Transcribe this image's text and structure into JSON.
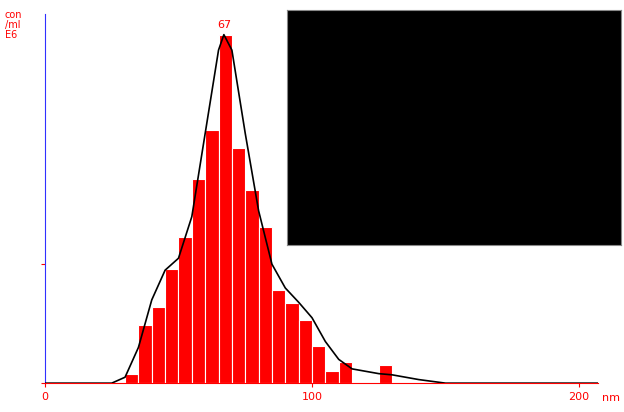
{
  "chart_data": {
    "type": "histogram",
    "ylabel": "con\n/ml\nE6",
    "xlabel": "nm",
    "bins": [
      30,
      35,
      40,
      45,
      50,
      55,
      60,
      65,
      70,
      75,
      80,
      85,
      90,
      95,
      100,
      105,
      110,
      115,
      120,
      125,
      130
    ],
    "counts": [
      0.08,
      0.49,
      0.64,
      0.96,
      1.23,
      1.72,
      2.13,
      2.93,
      1.98,
      1.62,
      1.31,
      0.78,
      0.67,
      0.53,
      0.31,
      0.1,
      0.18,
      0,
      0,
      0.15
    ],
    "color": "#ff0000",
    "series": [
      {
        "type": "line",
        "color": "#000000",
        "x": [
          0,
          25,
          30,
          35,
          40,
          45,
          50,
          55,
          60,
          65,
          67,
          70,
          75,
          80,
          85,
          90,
          95,
          100,
          105,
          110,
          115,
          120,
          125,
          130,
          140,
          150,
          207
        ],
        "values": [
          0,
          0,
          0.05,
          0.3,
          0.7,
          0.95,
          1.05,
          1.4,
          2.1,
          2.8,
          2.93,
          2.8,
          2.1,
          1.45,
          1.0,
          0.8,
          0.68,
          0.55,
          0.35,
          0.2,
          0.12,
          0.1,
          0.08,
          0.07,
          0.03,
          0,
          0
        ]
      }
    ],
    "annotations": [
      {
        "text": "67",
        "x": 67,
        "y": 2.93
      }
    ],
    "xlim": [
      0,
      207
    ],
    "xticks": [
      0,
      100,
      200
    ],
    "ylim": [
      0,
      3.1
    ],
    "yticks": [
      0,
      1
    ],
    "tick_labels": "x",
    "grid": false
  }
}
